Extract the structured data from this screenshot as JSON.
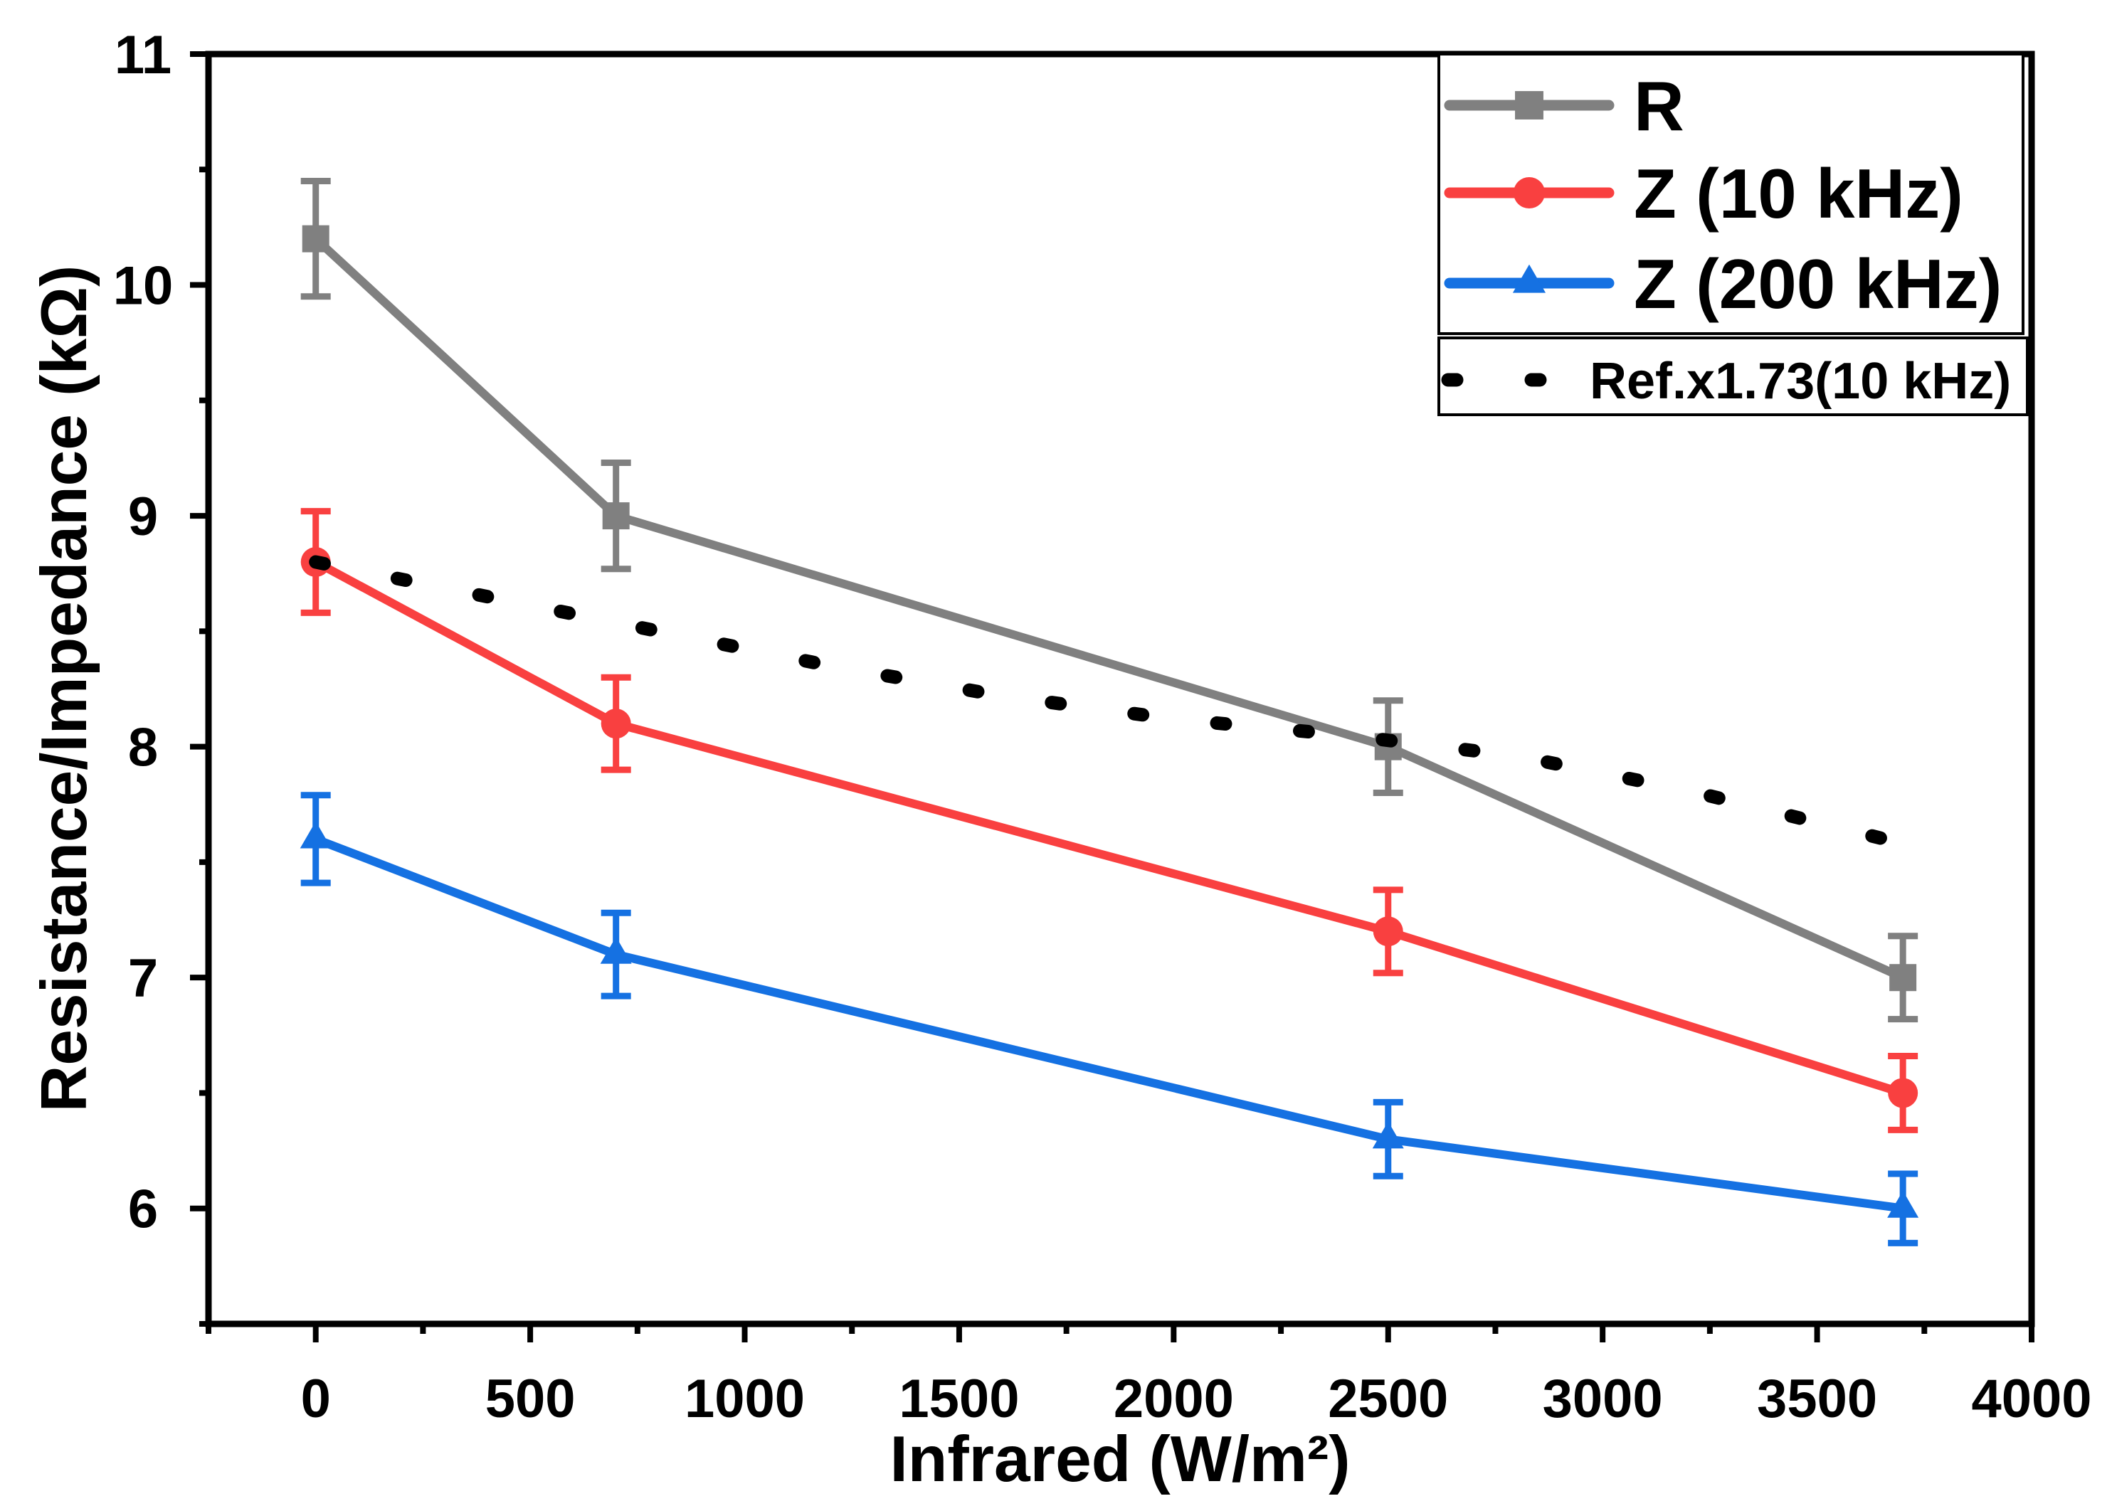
{
  "chart_data": {
    "type": "line",
    "xlabel": "Infrared (W/m²)",
    "ylabel": "Resistance/Impedance (kΩ)",
    "xlim": [
      -250,
      4000
    ],
    "ylim": [
      5.5,
      11
    ],
    "x_ticks": [
      0,
      500,
      1000,
      1500,
      2000,
      2500,
      3000,
      3500,
      4000
    ],
    "y_ticks": [
      6,
      7,
      8,
      9,
      10,
      11
    ],
    "grid": false,
    "legend": "top-right",
    "series": [
      {
        "name": "R",
        "color": "#808080",
        "marker": "square",
        "line": "solid",
        "x": [
          0,
          700,
          2500,
          3700
        ],
        "y": [
          10.2,
          9.0,
          8.0,
          7.0
        ],
        "error": [
          0.25,
          0.23,
          0.2,
          0.18
        ]
      },
      {
        "name": "Z (10 kHz)",
        "color": "#f94040",
        "marker": "circle",
        "line": "solid",
        "x": [
          0,
          700,
          2500,
          3700
        ],
        "y": [
          8.8,
          8.1,
          7.2,
          6.5
        ],
        "error": [
          0.22,
          0.2,
          0.18,
          0.16
        ]
      },
      {
        "name": "Z (200 kHz)",
        "color": "#1571e2",
        "marker": "triangle",
        "line": "solid",
        "x": [
          0,
          700,
          2500,
          3700
        ],
        "y": [
          7.6,
          7.1,
          6.3,
          6.0
        ],
        "error": [
          0.19,
          0.18,
          0.16,
          0.15
        ]
      },
      {
        "name": "Ref.x1.73(10 kHz)",
        "color": "#000000",
        "marker": "none",
        "line": "dotted",
        "x": [
          0,
          400,
          800,
          1200,
          1600,
          2000,
          2400,
          2800,
          3200,
          3700
        ],
        "y": [
          8.8,
          8.65,
          8.5,
          8.35,
          8.22,
          8.12,
          8.05,
          7.96,
          7.81,
          7.58
        ]
      }
    ]
  }
}
